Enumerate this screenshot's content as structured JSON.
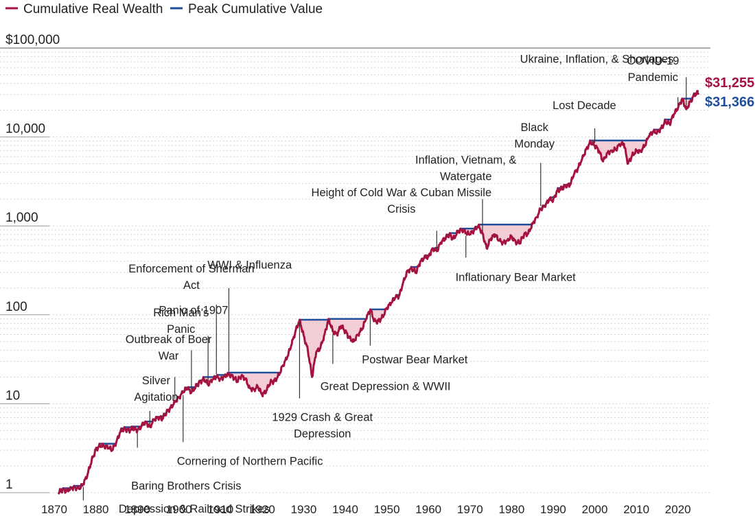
{
  "chart_data": {
    "type": "line",
    "scale": "log",
    "ylim": [
      1,
      100000
    ],
    "xlim": [
      1870,
      2025
    ],
    "legend": [
      {
        "name": "Cumulative Real Wealth",
        "color": "#a4123f"
      },
      {
        "name": "Peak Cumulative Value",
        "color": "#1f4e9c"
      }
    ],
    "y_ticks": [
      {
        "value": 1,
        "label": "1"
      },
      {
        "value": 10,
        "label": "10"
      },
      {
        "value": 100,
        "label": "100"
      },
      {
        "value": 1000,
        "label": "1,000"
      },
      {
        "value": 10000,
        "label": "10,000"
      },
      {
        "value": 100000,
        "label": "$100,000"
      }
    ],
    "x_ticks": [
      "1870",
      "1880",
      "1890",
      "1900",
      "1910",
      "1920",
      "1930",
      "1940",
      "1950",
      "1960",
      "1970",
      "1980",
      "1990",
      "2000",
      "2010",
      "2020"
    ],
    "end_labels": {
      "wealth": "$31,255",
      "peak": "$31,366"
    },
    "wealth_series": [
      [
        1871,
        1.0
      ],
      [
        1872,
        1.07
      ],
      [
        1873,
        1.05
      ],
      [
        1874,
        1.12
      ],
      [
        1875,
        1.15
      ],
      [
        1876,
        1.1
      ],
      [
        1877,
        1.25
      ],
      [
        1878,
        1.6
      ],
      [
        1879,
        2.3
      ],
      [
        1880,
        3.05
      ],
      [
        1881,
        3.4
      ],
      [
        1882,
        3.35
      ],
      [
        1883,
        3.2
      ],
      [
        1884,
        3.0
      ],
      [
        1885,
        3.8
      ],
      [
        1886,
        5.0
      ],
      [
        1887,
        5.2
      ],
      [
        1888,
        5.0
      ],
      [
        1889,
        5.3
      ],
      [
        1890,
        5.0
      ],
      [
        1891,
        5.6
      ],
      [
        1892,
        6.3
      ],
      [
        1893,
        5.5
      ],
      [
        1894,
        6.6
      ],
      [
        1895,
        7.0
      ],
      [
        1896,
        6.8
      ],
      [
        1897,
        8.0
      ],
      [
        1898,
        9.0
      ],
      [
        1899,
        10.5
      ],
      [
        1900,
        11.8
      ],
      [
        1901,
        13.5
      ],
      [
        1902,
        15.0
      ],
      [
        1903,
        13.5
      ],
      [
        1904,
        15.5
      ],
      [
        1905,
        17.5
      ],
      [
        1906,
        19.0
      ],
      [
        1907,
        16.5
      ],
      [
        1908,
        18.5
      ],
      [
        1909,
        20.0
      ],
      [
        1910,
        19.0
      ],
      [
        1911,
        20.5
      ],
      [
        1912,
        21.5
      ],
      [
        1913,
        20.0
      ],
      [
        1914,
        18.0
      ],
      [
        1915,
        20.5
      ],
      [
        1916,
        19.0
      ],
      [
        1917,
        15.0
      ],
      [
        1918,
        14.5
      ],
      [
        1919,
        15.5
      ],
      [
        1920,
        12.5
      ],
      [
        1921,
        14.0
      ],
      [
        1922,
        17.5
      ],
      [
        1923,
        18.0
      ],
      [
        1924,
        21.0
      ],
      [
        1925,
        27.0
      ],
      [
        1926,
        33.0
      ],
      [
        1927,
        45.0
      ],
      [
        1928,
        65.0
      ],
      [
        1929,
        88.0
      ],
      [
        1930,
        58.0
      ],
      [
        1931,
        40.0
      ],
      [
        1932,
        20.0
      ],
      [
        1933,
        38.0
      ],
      [
        1934,
        42.0
      ],
      [
        1935,
        60.0
      ],
      [
        1936,
        90.0
      ],
      [
        1937,
        65.0
      ],
      [
        1938,
        60.0
      ],
      [
        1939,
        75.0
      ],
      [
        1940,
        65.0
      ],
      [
        1941,
        55.0
      ],
      [
        1942,
        50.0
      ],
      [
        1943,
        60.0
      ],
      [
        1944,
        68.0
      ],
      [
        1945,
        90.0
      ],
      [
        1946,
        115.0
      ],
      [
        1947,
        85.0
      ],
      [
        1948,
        85.0
      ],
      [
        1949,
        95.0
      ],
      [
        1950,
        120.0
      ],
      [
        1951,
        135.0
      ],
      [
        1952,
        155.0
      ],
      [
        1953,
        165.0
      ],
      [
        1954,
        240.0
      ],
      [
        1955,
        310.0
      ],
      [
        1956,
        330.0
      ],
      [
        1957,
        300.0
      ],
      [
        1958,
        390.0
      ],
      [
        1959,
        440.0
      ],
      [
        1960,
        450.0
      ],
      [
        1961,
        560.0
      ],
      [
        1962,
        520.0
      ],
      [
        1963,
        650.0
      ],
      [
        1964,
        720.0
      ],
      [
        1965,
        800.0
      ],
      [
        1966,
        720.0
      ],
      [
        1967,
        850.0
      ],
      [
        1968,
        920.0
      ],
      [
        1969,
        830.0
      ],
      [
        1970,
        800.0
      ],
      [
        1971,
        900.0
      ],
      [
        1972,
        1010.0
      ],
      [
        1973,
        820.0
      ],
      [
        1974,
        560.0
      ],
      [
        1975,
        720.0
      ],
      [
        1976,
        800.0
      ],
      [
        1977,
        680.0
      ],
      [
        1978,
        650.0
      ],
      [
        1979,
        690.0
      ],
      [
        1980,
        760.0
      ],
      [
        1981,
        650.0
      ],
      [
        1982,
        650.0
      ],
      [
        1983,
        800.0
      ],
      [
        1984,
        820.0
      ],
      [
        1985,
        1050.0
      ],
      [
        1986,
        1250.0
      ],
      [
        1987,
        1550.0
      ],
      [
        1988,
        1650.0
      ],
      [
        1989,
        2000.0
      ],
      [
        1990,
        1950.0
      ],
      [
        1991,
        2500.0
      ],
      [
        1992,
        2600.0
      ],
      [
        1993,
        2850.0
      ],
      [
        1994,
        2850.0
      ],
      [
        1995,
        3800.0
      ],
      [
        1996,
        4500.0
      ],
      [
        1997,
        5800.0
      ],
      [
        1998,
        7300.0
      ],
      [
        1999,
        8800.0
      ],
      [
        2000,
        8000.0
      ],
      [
        2001,
        7000.0
      ],
      [
        2002,
        5300.0
      ],
      [
        2003,
        6600.0
      ],
      [
        2004,
        7000.0
      ],
      [
        2005,
        7200.0
      ],
      [
        2006,
        8200.0
      ],
      [
        2007,
        8400.0
      ],
      [
        2008,
        5000.0
      ],
      [
        2009,
        6200.0
      ],
      [
        2010,
        7000.0
      ],
      [
        2011,
        6900.0
      ],
      [
        2012,
        7900.0
      ],
      [
        2013,
        10200.0
      ],
      [
        2014,
        11500.0
      ],
      [
        2015,
        11300.0
      ],
      [
        2016,
        12500.0
      ],
      [
        2017,
        15000.0
      ],
      [
        2018,
        14000.0
      ],
      [
        2019,
        18000.0
      ],
      [
        2020,
        21000.0
      ],
      [
        2021,
        27000.0
      ],
      [
        2022,
        20500.0
      ],
      [
        2023,
        25000.0
      ],
      [
        2024,
        30000.0
      ],
      [
        2025,
        31255.0
      ]
    ],
    "annotations": [
      {
        "lines": [
          "Depression & Railroad Strikes"
        ],
        "year": 1877,
        "value": 1.25,
        "text_year": 1885.5,
        "text_y_value": 0.6,
        "anchor": "start",
        "leader_to_value": 0.82
      },
      {
        "lines": [
          "Baring Brothers Crisis"
        ],
        "year": 1890,
        "value": 5.0,
        "text_year": 1888.5,
        "text_y_value": 1.08,
        "anchor": "start",
        "leader_to_value": 3.2
      },
      {
        "lines": [
          "Cornering of Northern Pacific"
        ],
        "year": 1901,
        "value": 13.5,
        "text_year": 1899.5,
        "text_y_value": 2.05,
        "anchor": "start",
        "leader_to_value": 3.7
      },
      {
        "lines": [
          "Silver",
          "Agitation"
        ],
        "year": 1893,
        "value": 5.5,
        "text_year": 1894.5,
        "text_y_value": 16.5,
        "anchor": "middle",
        "leader_to_value": 8.3
      },
      {
        "lines": [
          "Outbreak of Boer",
          "War"
        ],
        "year": 1899,
        "value": 10.5,
        "text_year": 1897.5,
        "text_y_value": 48.0,
        "anchor": "middle",
        "leader_to_value": 20.0
      },
      {
        "lines": [
          "Rich Man's",
          "Panic"
        ],
        "year": 1903,
        "value": 13.5,
        "text_year": 1900.5,
        "text_y_value": 96.0,
        "anchor": "middle",
        "leader_to_value": 40.0
      },
      {
        "lines": [
          "Panic of 1907"
        ],
        "year": 1907,
        "value": 16.5,
        "text_year": 1903.5,
        "text_y_value": 102.0,
        "anchor": "middle",
        "leader_to_value": 58.0
      },
      {
        "lines": [
          "Enforcement of Sherman",
          "Act"
        ],
        "year": 1909,
        "value": 20.0,
        "text_year": 1903.0,
        "text_y_value": 300.0,
        "anchor": "middle",
        "leader_to_value": 130.0
      },
      {
        "lines": [
          "WWI & Influenza"
        ],
        "year": 1912,
        "value": 21.5,
        "text_year": 1917.0,
        "text_y_value": 330.0,
        "anchor": "middle",
        "leader_to_value": 200.0
      },
      {
        "lines": [
          "1929 Crash & Great",
          "Depression"
        ],
        "year": 1929,
        "value": 88.0,
        "text_year": 1934.5,
        "text_y_value": 6.4,
        "anchor": "middle",
        "leader_to_value": 11.5
      },
      {
        "lines": [
          "Great Depression & WWII"
        ],
        "year": 1937,
        "value": 65.0,
        "text_year": 1934.0,
        "text_y_value": 14.3,
        "anchor": "start",
        "leader_to_value": 28.0
      },
      {
        "lines": [
          "Postwar Bear Market"
        ],
        "year": 1946,
        "value": 115.0,
        "text_year": 1944.0,
        "text_y_value": 28.5,
        "anchor": "start",
        "leader_to_value": 45.0
      },
      {
        "lines": [
          "Height of Cold War & Cuban Missile",
          "Crisis"
        ],
        "year": 1962,
        "value": 520.0,
        "text_year": 1953.5,
        "text_y_value": 2150.0,
        "anchor": "middle",
        "leader_to_value": 880.0
      },
      {
        "lines": [
          "Inflation, Vietnam, &",
          "Watergate"
        ],
        "year": 1973,
        "value": 820.0,
        "text_year": 1969.0,
        "text_y_value": 5000.0,
        "anchor": "middle",
        "leader_to_value": 2000.0
      },
      {
        "lines": [
          "Inflationary Bear Market"
        ],
        "year": 1969,
        "value": 830.0,
        "text_year": 1966.5,
        "text_y_value": 240.0,
        "anchor": "start",
        "leader_to_value": 440.0
      },
      {
        "lines": [
          "Black",
          "Monday"
        ],
        "year": 1987,
        "value": 1550.0,
        "text_year": 1985.5,
        "text_y_value": 11600.0,
        "anchor": "middle",
        "leader_to_value": 5100.0
      },
      {
        "lines": [
          "Lost Decade"
        ],
        "year": 2000,
        "value": 8000.0,
        "text_year": 1997.5,
        "text_y_value": 20500.0,
        "anchor": "middle",
        "leader_to_value": 12500.0
      },
      {
        "lines": [
          "COVID-19",
          "Pandemic"
        ],
        "year": 2020,
        "value": 21000.0,
        "text_year": 2014.0,
        "text_y_value": 65000.0,
        "anchor": "middle",
        "leader_to_value": 28000.0
      },
      {
        "lines": [
          "Ukraine, Inflation, & Shortages"
        ],
        "year": 2022,
        "value": 20500.0,
        "text_year": 2000.5,
        "text_y_value": 68000.0,
        "anchor": "middle",
        "leader_to_value": 47000.0
      }
    ]
  }
}
